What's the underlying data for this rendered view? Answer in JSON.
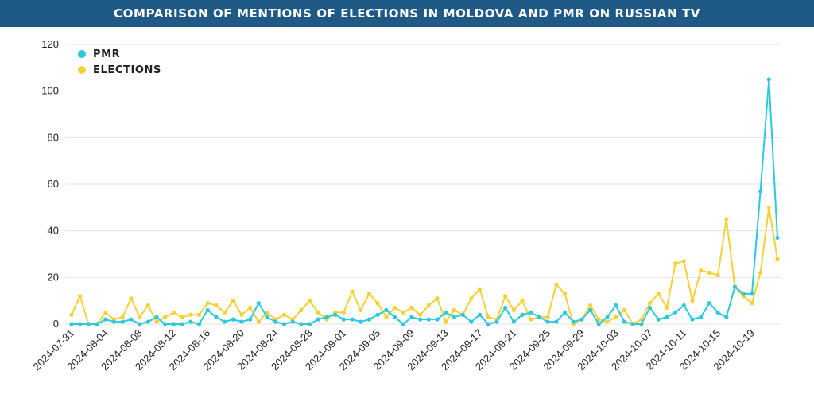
{
  "title": "COMPARISON OF MENTIONS OF ELECTIONS IN MOLDOVA AND PMR ON RUSSIAN TV",
  "chart_data": {
    "type": "line",
    "title": "COMPARISON OF MENTIONS OF ELECTIONS IN MOLDOVA AND PMR ON RUSSIAN TV",
    "xlabel": "",
    "ylabel": "",
    "ylim": [
      0,
      120
    ],
    "yticks": [
      0,
      20,
      40,
      60,
      80,
      100,
      120
    ],
    "grid": "horizontal",
    "legend_position": "top-left",
    "x": [
      "2024-07-31",
      "2024-08-01",
      "2024-08-02",
      "2024-08-03",
      "2024-08-04",
      "2024-08-05",
      "2024-08-06",
      "2024-08-07",
      "2024-08-08",
      "2024-08-09",
      "2024-08-10",
      "2024-08-11",
      "2024-08-12",
      "2024-08-13",
      "2024-08-14",
      "2024-08-15",
      "2024-08-16",
      "2024-08-17",
      "2024-08-18",
      "2024-08-19",
      "2024-08-20",
      "2024-08-21",
      "2024-08-22",
      "2024-08-23",
      "2024-08-24",
      "2024-08-25",
      "2024-08-26",
      "2024-08-27",
      "2024-08-28",
      "2024-08-29",
      "2024-08-30",
      "2024-08-31",
      "2024-09-01",
      "2024-09-02",
      "2024-09-03",
      "2024-09-04",
      "2024-09-05",
      "2024-09-06",
      "2024-09-07",
      "2024-09-08",
      "2024-09-09",
      "2024-09-10",
      "2024-09-11",
      "2024-09-12",
      "2024-09-13",
      "2024-09-14",
      "2024-09-15",
      "2024-09-16",
      "2024-09-17",
      "2024-09-18",
      "2024-09-19",
      "2024-09-20",
      "2024-09-21",
      "2024-09-22",
      "2024-09-23",
      "2024-09-24",
      "2024-09-25",
      "2024-09-26",
      "2024-09-27",
      "2024-09-28",
      "2024-09-29",
      "2024-09-30",
      "2024-10-01",
      "2024-10-02",
      "2024-10-03",
      "2024-10-04",
      "2024-10-05",
      "2024-10-06",
      "2024-10-07",
      "2024-10-08",
      "2024-10-09",
      "2024-10-10",
      "2024-10-11",
      "2024-10-12",
      "2024-10-13",
      "2024-10-14",
      "2024-10-15",
      "2024-10-16",
      "2024-10-17",
      "2024-10-18",
      "2024-10-19",
      "2024-10-20",
      "2024-10-21",
      "2024-10-22"
    ],
    "tick_labels": [
      "2024-07-31",
      "2024-08-04",
      "2024-08-08",
      "2024-08-12",
      "2024-08-16",
      "2024-08-20",
      "2024-08-24",
      "2024-08-28",
      "2024-09-01",
      "2024-09-05",
      "2024-09-09",
      "2024-09-13",
      "2024-09-17",
      "2024-09-21",
      "2024-09-25",
      "2024-09-29",
      "2024-10-03",
      "2024-10-07",
      "2024-10-11",
      "2024-10-15",
      "2024-10-19"
    ],
    "series": [
      {
        "name": "PMR",
        "color": "#2cc8de",
        "values": [
          0,
          0,
          0,
          0,
          2,
          1,
          1,
          2,
          0,
          1,
          3,
          0,
          0,
          0,
          1,
          0,
          6,
          3,
          1,
          2,
          1,
          2,
          9,
          3,
          1,
          0,
          1,
          0,
          0,
          2,
          3,
          4,
          2,
          2,
          1,
          2,
          4,
          6,
          3,
          0,
          3,
          2,
          2,
          2,
          5,
          3,
          4,
          1,
          4,
          0,
          1,
          7,
          1,
          4,
          5,
          3,
          1,
          1,
          5,
          1,
          2,
          6,
          0,
          3,
          8,
          1,
          0,
          0,
          7,
          2,
          3,
          5,
          8,
          2,
          3,
          9,
          5,
          3,
          16,
          13,
          13,
          57,
          105,
          37
        ]
      },
      {
        "name": "ELECTIONS",
        "color": "#f7d036",
        "values": [
          4,
          12,
          0,
          0,
          5,
          2,
          3,
          11,
          3,
          8,
          1,
          3,
          5,
          3,
          4,
          4,
          9,
          8,
          5,
          10,
          4,
          7,
          1,
          5,
          2,
          4,
          2,
          6,
          10,
          5,
          2,
          5,
          5,
          14,
          6,
          13,
          9,
          3,
          7,
          5,
          7,
          4,
          8,
          11,
          1,
          6,
          4,
          11,
          15,
          3,
          2,
          12,
          6,
          10,
          2,
          3,
          3,
          17,
          13,
          0,
          2,
          8,
          2,
          1,
          3,
          6,
          0,
          2,
          9,
          13,
          7,
          26,
          27,
          10,
          23,
          22,
          21,
          45,
          16,
          12,
          9,
          22,
          50,
          28
        ]
      }
    ]
  }
}
